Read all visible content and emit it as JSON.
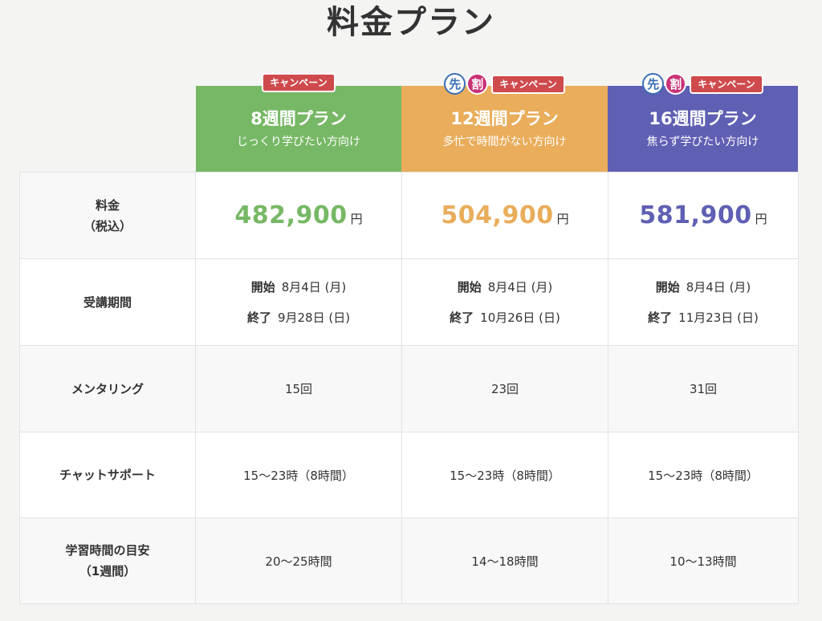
{
  "page": {
    "title": "料金プラン"
  },
  "badges": {
    "campaign": "キャンペーン",
    "early_1": "先",
    "early_2": "割"
  },
  "plans": [
    {
      "name": "8週間プラン",
      "tagline": "じっくり学びたい方向け",
      "color": "#77b866",
      "price": "482,900",
      "start": "8月4日 (月)",
      "end": "9月28日 (日)",
      "mentoring": "15回",
      "chat": "15〜23時（8時間）",
      "study": "20〜25時間",
      "early": false
    },
    {
      "name": "12週間プラン",
      "tagline": "多忙で時間がない方向け",
      "color": "#e9ad5b",
      "price": "504,900",
      "start": "8月4日 (月)",
      "end": "10月26日 (日)",
      "mentoring": "23回",
      "chat": "15〜23時（8時間）",
      "study": "14〜18時間",
      "early": true
    },
    {
      "name": "16週間プラン",
      "tagline": "焦らず学びたい方向け",
      "color": "#5f5fb4",
      "price": "581,900",
      "start": "8月4日 (月)",
      "end": "11月23日 (日)",
      "mentoring": "31回",
      "chat": "15〜23時（8時間）",
      "study": "10〜13時間",
      "early": true
    }
  ],
  "rows": {
    "price_label_1": "料金",
    "price_label_2": "（税込）",
    "period_label": "受講期間",
    "mentoring_label": "メンタリング",
    "chat_label": "チャットサポート",
    "study_label_1": "学習時間の目安",
    "study_label_2": "（1週間）",
    "start_label": "開始",
    "end_label": "終了",
    "yen": "円"
  }
}
